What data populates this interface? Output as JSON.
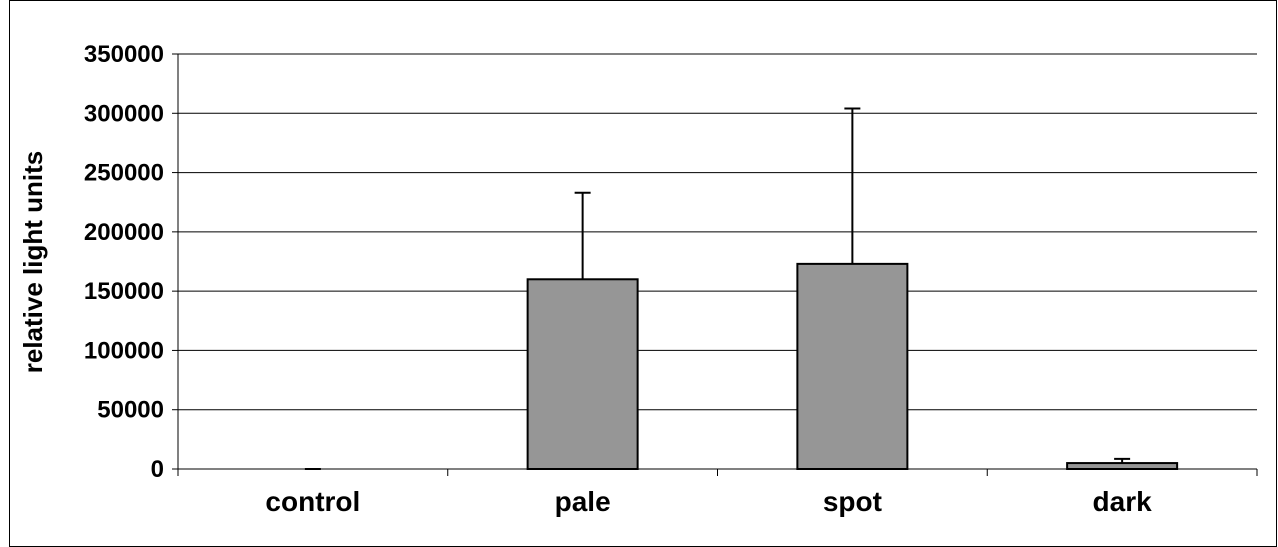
{
  "chart_data": {
    "type": "bar",
    "title": "",
    "xlabel": "",
    "ylabel": "relative light units",
    "categories": [
      "control",
      "pale",
      "spot",
      "dark"
    ],
    "values": [
      0,
      160000,
      173000,
      5000
    ],
    "error_plus": [
      0,
      73000,
      131000,
      3500
    ],
    "ylim": [
      0,
      350000
    ],
    "yticks": [
      0,
      50000,
      100000,
      150000,
      200000,
      250000,
      300000,
      350000
    ],
    "ytick_labels": [
      "0",
      "50000",
      "100000",
      "150000",
      "200000",
      "250000",
      "300000",
      "350000"
    ],
    "grid": true,
    "legend": "none",
    "colors": {
      "bar_fill": "#969696",
      "bar_stroke": "#000000",
      "grid": "#000000"
    }
  }
}
